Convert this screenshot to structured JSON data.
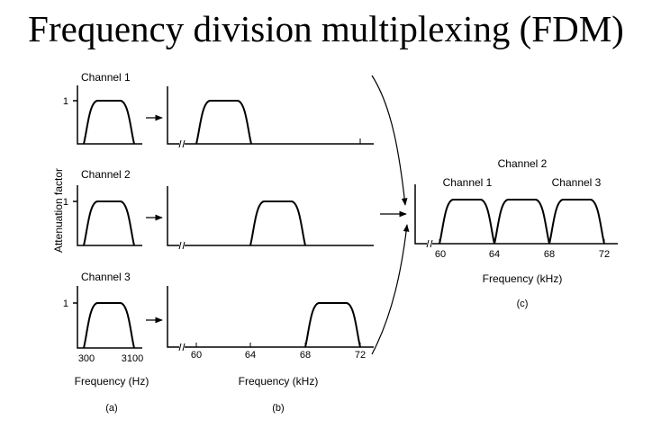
{
  "title": "Frequency division multiplexing (FDM)",
  "y_axis_label": "Attenuation factor",
  "one": "1",
  "channels": [
    "Channel 1",
    "Channel 2",
    "Channel 3"
  ],
  "panel_a": {
    "tick_left": "300",
    "tick_right": "3100",
    "xlabel": "Frequency (Hz)",
    "caption": "(a)"
  },
  "panel_b": {
    "ticks": [
      "60",
      "64",
      "68",
      "72"
    ],
    "xlabel": "Frequency (kHz)",
    "caption": "(b)"
  },
  "panel_c": {
    "ticks": [
      "60",
      "64",
      "68",
      "72"
    ],
    "xlabel": "Frequency (kHz)",
    "caption": "(c)"
  }
}
